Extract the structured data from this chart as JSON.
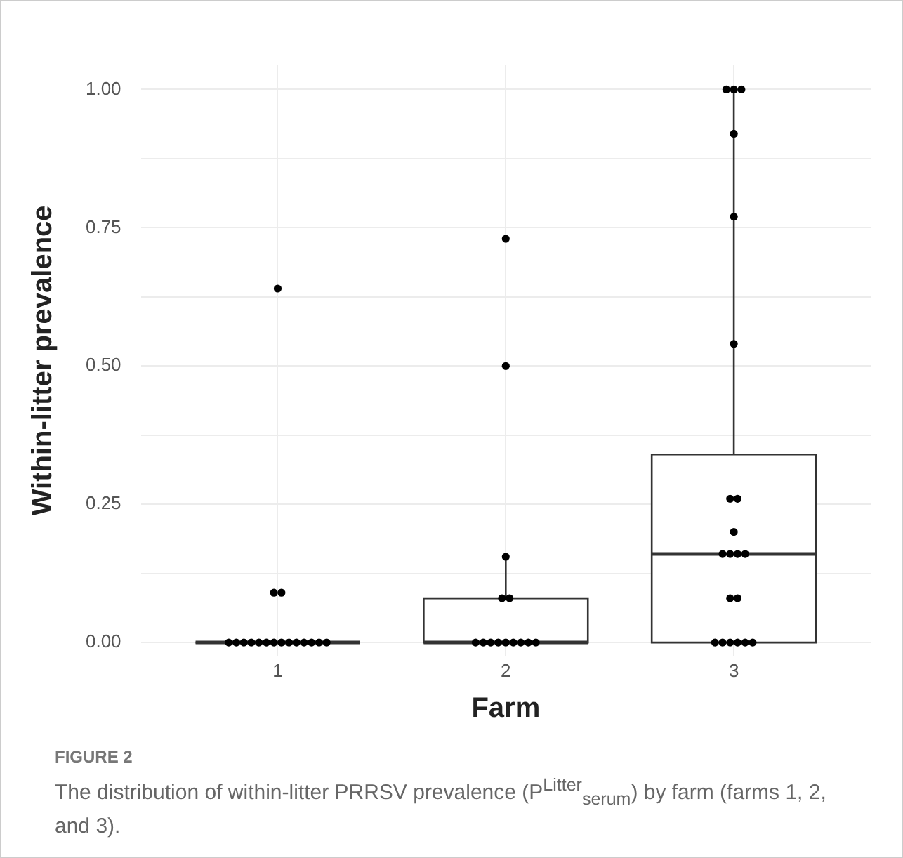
{
  "chart_data": {
    "type": "box",
    "xlabel": "Farm",
    "ylabel": "Within-litter prevalence",
    "categories": [
      "1",
      "2",
      "3"
    ],
    "boxes": [
      {
        "low": 0,
        "q1": 0,
        "median": 0,
        "q3": 0,
        "high": 0
      },
      {
        "low": 0,
        "q1": 0,
        "median": 0,
        "q3": 0.08,
        "high": 0.155
      },
      {
        "low": 0,
        "q1": 0,
        "median": 0.16,
        "q3": 0.34,
        "high": 1.0
      }
    ],
    "colors": [
      "#333333",
      "#ffffff",
      "#ffffff"
    ],
    "series": [
      {
        "type": "scatter",
        "color": "#000000",
        "x": [
          "1",
          "1",
          "1",
          "1",
          "1",
          "1",
          "1",
          "1",
          "1",
          "1",
          "1",
          "1",
          "1",
          "1",
          "1",
          "1",
          "1"
        ],
        "values": [
          0,
          0,
          0,
          0,
          0,
          0,
          0,
          0,
          0,
          0,
          0,
          0,
          0,
          0,
          0.09,
          0.09,
          0.64
        ]
      },
      {
        "type": "scatter",
        "color": "#000000",
        "x": [
          "2",
          "2",
          "2",
          "2",
          "2",
          "2",
          "2",
          "2",
          "2",
          "2",
          "2",
          "2",
          "2",
          "2"
        ],
        "values": [
          0,
          0,
          0,
          0,
          0,
          0,
          0,
          0,
          0,
          0.08,
          0.08,
          0.155,
          0.5,
          0.73
        ]
      },
      {
        "type": "scatter",
        "color": "#000000",
        "x": [
          "3",
          "3",
          "3",
          "3",
          "3",
          "3",
          "3",
          "3",
          "3",
          "3",
          "3",
          "3",
          "3",
          "3",
          "3",
          "3",
          "3",
          "3",
          "3",
          "3",
          "3"
        ],
        "values": [
          0,
          0,
          0,
          0,
          0,
          0,
          0.08,
          0.08,
          0.16,
          0.16,
          0.16,
          0.16,
          0.2,
          0.26,
          0.26,
          0.54,
          0.77,
          0.92,
          1.0,
          1.0,
          1.0
        ]
      }
    ],
    "ylim": [
      -0.025,
      1.045
    ],
    "yticks": [
      {
        "value": 0,
        "label": "0.00"
      },
      {
        "value": 0.125,
        "label": null
      },
      {
        "value": 0.25,
        "label": "0.25"
      },
      {
        "value": 0.375,
        "label": null
      },
      {
        "value": 0.5,
        "label": "0.50"
      },
      {
        "value": 0.625,
        "label": null
      },
      {
        "value": 0.75,
        "label": "0.75"
      },
      {
        "value": 0.875,
        "label": null
      },
      {
        "value": 1,
        "label": "1.00"
      }
    ],
    "grid": true,
    "legend": false,
    "marker": "circle",
    "annotations": [
      "FIGURE 2",
      "The distribution of within-litter PRRSV prevalence (P$^{Litter}$$_{serum}$) by farm (farms 1, 2, and 3)."
    ]
  }
}
